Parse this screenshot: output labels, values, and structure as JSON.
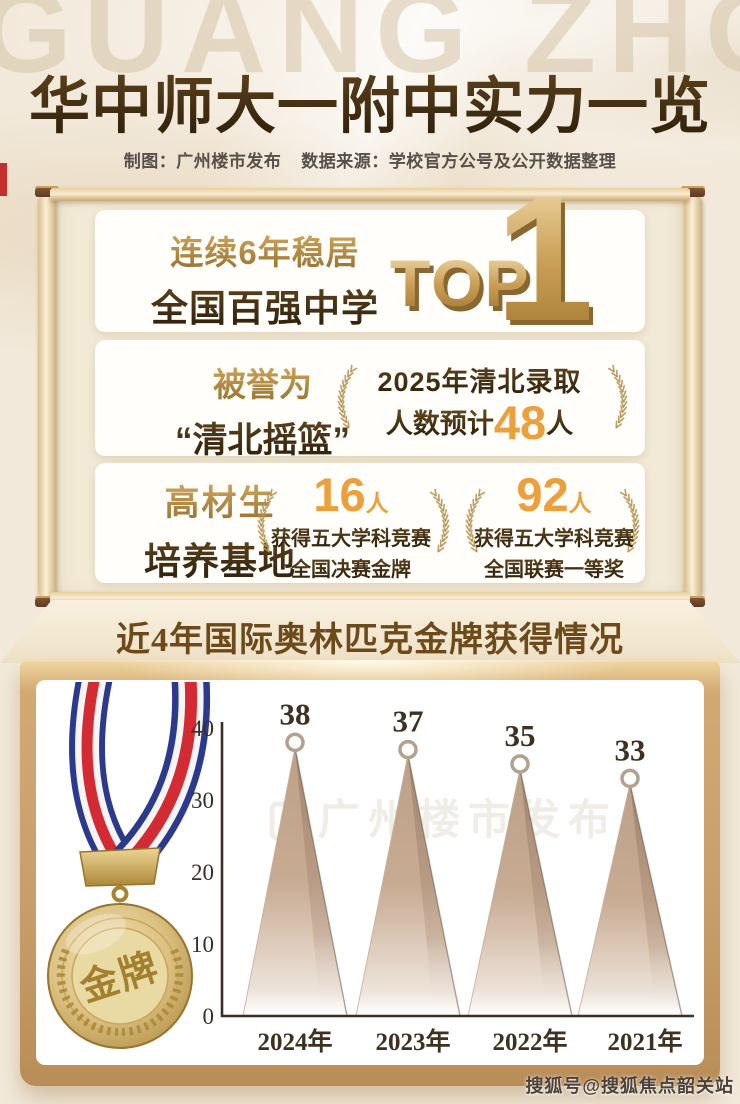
{
  "background": {
    "watermark_text": "GUANG ZHOU"
  },
  "header": {
    "title": "华中师大一附中实力一览",
    "credit": "制图：广州楼市发布",
    "source": "数据来源：学校官方公号及公开数据整理"
  },
  "scroll_cards": {
    "rank_card": {
      "line1": "连续6年稳居",
      "line2": "全国百强中学",
      "badge_word": "TOP",
      "badge_number": "1"
    },
    "cradle_card": {
      "line1": "被誉为",
      "line2": "“清北摇篮”",
      "wreath_line1": "2025年清北录取",
      "wreath_prefix": "人数预计",
      "wreath_number": "48",
      "wreath_suffix": "人"
    },
    "talent_card": {
      "line1": "高材生",
      "line2": "培养基地",
      "wreath_left": {
        "number": "16",
        "unit": "人",
        "desc1": "获得五大学科竞赛",
        "desc2": "全国决赛金牌"
      },
      "wreath_right": {
        "number": "92",
        "unit": "人",
        "desc1": "获得五大学科竞赛",
        "desc2": "全国联赛一等奖"
      }
    }
  },
  "olympiad_section": {
    "heading": "近4年国际奥林匹克金牌获得情况",
    "medal_label": "金牌",
    "chart_watermark": "广州楼市发布"
  },
  "chart_data": {
    "type": "bar",
    "style": "triangle-peaks-with-circle-markers",
    "title": "近4年国际奥林匹克金牌获得情况",
    "categories": [
      "2024年",
      "2023年",
      "2022年",
      "2021年"
    ],
    "values": [
      38,
      37,
      35,
      33
    ],
    "xlabel": "",
    "ylabel": "",
    "ylim": [
      0,
      40
    ],
    "yticks": [
      0,
      10,
      20,
      30,
      40
    ],
    "grid": false,
    "legend": false,
    "peak_fill": "#c6a98f",
    "marker_ring": "#b3a08e",
    "label_color": "#3f3122"
  },
  "footer": {
    "watermark": "搜狐号@搜狐焦点韶关站"
  },
  "theme": {
    "background": "#f2e9da",
    "gold_text": "#b3873d",
    "dark_text": "#3e2d17",
    "orange_accent": "#ec9f3a",
    "gold_frame": "#c89f6b",
    "red_accent": "#c2312b",
    "laurel_gold": "#b2914e"
  }
}
